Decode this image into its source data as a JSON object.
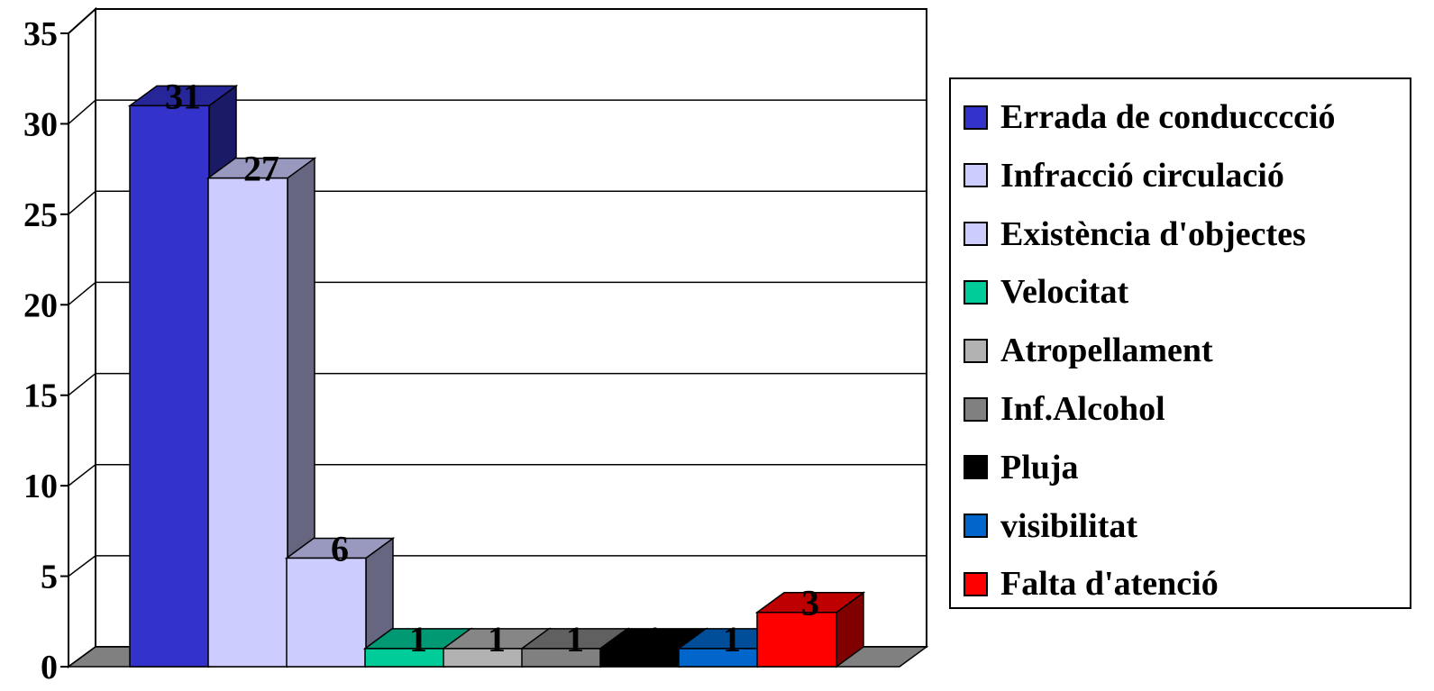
{
  "chart_data": {
    "type": "bar",
    "categories": [
      "Errada de conducccció",
      "Infracció circulació",
      "Existència d'objectes",
      "Velocitat",
      "Atropellament",
      "Inf.Alcohol",
      "Pluja",
      "visibilitat",
      "Falta d'atenció"
    ],
    "values": [
      31,
      27,
      6,
      1,
      1,
      1,
      1,
      1,
      3
    ],
    "data_labels": [
      "31",
      "27",
      "6",
      "1",
      "1",
      "1",
      "1",
      "1",
      "3"
    ],
    "colors": [
      "#3333cc",
      "#ccccff",
      "#ccccff",
      "#00cc99",
      "#b2b2b2",
      "#808080",
      "#000000",
      "#0066cc",
      "#ff0000"
    ],
    "y_ticks": [
      "0",
      "5",
      "10",
      "15",
      "20",
      "25",
      "30",
      "35"
    ],
    "ylim": [
      0,
      35
    ],
    "grid": true,
    "legend_position": "right",
    "style": "3d-bar"
  }
}
